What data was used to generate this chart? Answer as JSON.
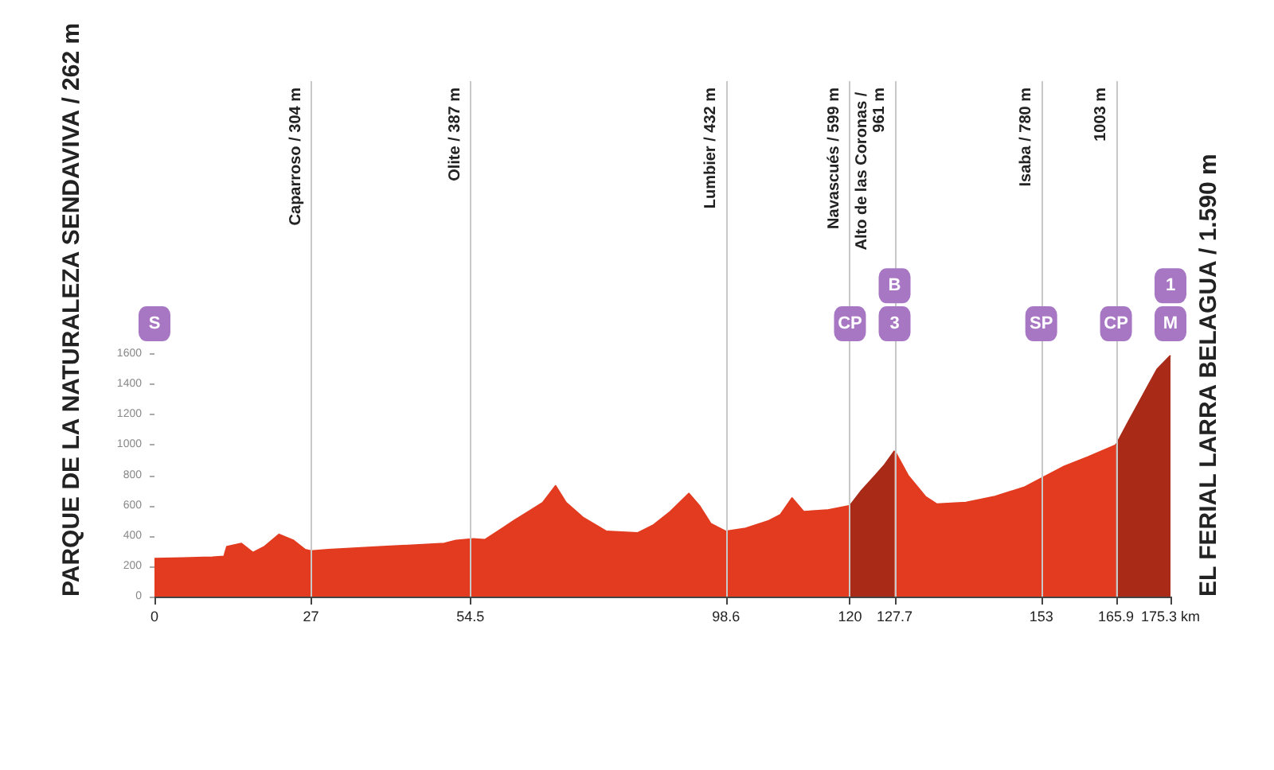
{
  "chart_data": {
    "type": "area",
    "xlim": [
      0,
      175.3
    ],
    "xticks": [
      0,
      27,
      54.5,
      98.6,
      120,
      127.7,
      153,
      165.9,
      {
        "value": 175.3,
        "label": "175.3 km"
      }
    ],
    "ylim": [
      0,
      3400
    ],
    "yticks": [
      0,
      200,
      400,
      600,
      800,
      1000,
      1200,
      1400,
      1600
    ],
    "series": [
      {
        "color": "#e23b1f",
        "x": [
          0,
          5,
          10,
          12,
          12.5,
          15,
          17,
          19,
          21.5,
          24,
          26,
          27,
          30,
          35,
          40,
          45,
          50,
          52,
          55,
          57,
          60,
          62,
          64.5,
          67,
          69.2,
          71,
          74,
          78,
          83.4,
          86,
          89,
          92.2,
          94,
          96,
          98.6,
          102,
          106,
          108,
          110,
          112,
          116,
          120
        ],
        "values": [
          250,
          255,
          260,
          265,
          330,
          350,
          290,
          330,
          410,
          370,
          310,
          300,
          310,
          320,
          330,
          340,
          350,
          370,
          380,
          375,
          450,
          500,
          560,
          620,
          730,
          620,
          520,
          430,
          420,
          470,
          560,
          680,
          600,
          480,
          430,
          450,
          500,
          540,
          650,
          560,
          570,
          600
        ]
      },
      {
        "color": "#a92b17",
        "x": [
          120,
          122,
          124.4,
          126,
          127.7
        ],
        "values": [
          600,
          700,
          800,
          870,
          961
        ]
      },
      {
        "color": "#e23b1f",
        "x": [
          127.7,
          130,
          133,
          135,
          140,
          145,
          150,
          153,
          157,
          161,
          165.9
        ],
        "values": [
          961,
          800,
          660,
          610,
          620,
          660,
          720,
          780,
          860,
          920,
          1000
        ]
      },
      {
        "color": "#a92b17",
        "x": [
          165.9,
          168,
          171,
          173,
          175.3
        ],
        "values": [
          1000,
          1150,
          1360,
          1500,
          1590
        ]
      }
    ],
    "ref_lines": [
      {
        "axis": "x",
        "value": 27,
        "label": "Caparroso / 304 m"
      },
      {
        "axis": "x",
        "value": 54.5,
        "label": "Olite / 387 m"
      },
      {
        "axis": "x",
        "value": 98.6,
        "label": "Lumbier / 432 m"
      },
      {
        "axis": "x",
        "value": 120,
        "label": "Navascués / 599 m"
      },
      {
        "axis": "x",
        "value": 127.7,
        "label": "Alto de las Coronas / 961 m"
      },
      {
        "axis": "x",
        "value": 153,
        "label": "Isaba / 780 m"
      },
      {
        "axis": "x",
        "value": 165.9,
        "label": "1003 m"
      }
    ],
    "annotations": [
      {
        "text": "S",
        "x": 0,
        "y": 1800
      },
      {
        "text": "CP",
        "x": 120,
        "y": 1800
      },
      {
        "text": "3",
        "x": 127.7,
        "y": 1800
      },
      {
        "text": "B",
        "x": 127.7,
        "y": 2050
      },
      {
        "text": "SP",
        "x": 153,
        "y": 1800
      },
      {
        "text": "CP",
        "x": 165.9,
        "y": 1800
      },
      {
        "text": "M",
        "x": 175.3,
        "y": 1800
      },
      {
        "text": "1",
        "x": 175.3,
        "y": 2050
      },
      "PARQUE DE LA NATURALEZA SENDAVIVA / 262 m",
      "EL FERIAL LARRA BELAGUA / 1.590 m"
    ]
  }
}
